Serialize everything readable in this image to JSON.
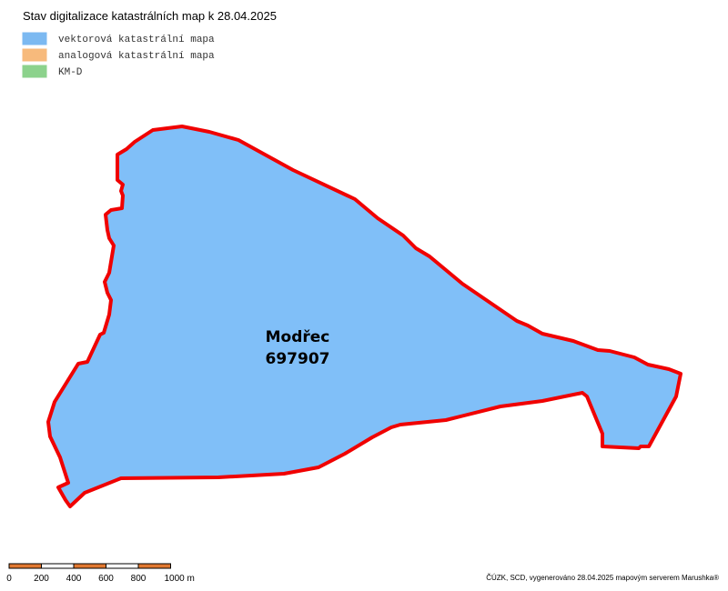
{
  "header": {
    "title": "Stav digitalizace katastrálních map k 28.04.2025"
  },
  "legend": [
    {
      "label": "vektorová katastrální mapa",
      "color": "#80bff8"
    },
    {
      "label": "analogová katastrální mapa",
      "color": "#ffc080"
    },
    {
      "label": "KM-D",
      "color": "#90d890"
    }
  ],
  "area": {
    "name": "Modřec",
    "code": "697907"
  },
  "scale_bar": {
    "labels": [
      "0",
      "200",
      "400",
      "600",
      "800",
      "1000 m"
    ]
  },
  "footer": {
    "credit": "ČÚZK, SCD, vygenerováno 28.04.2025 mapovým serverem Marushka®"
  }
}
